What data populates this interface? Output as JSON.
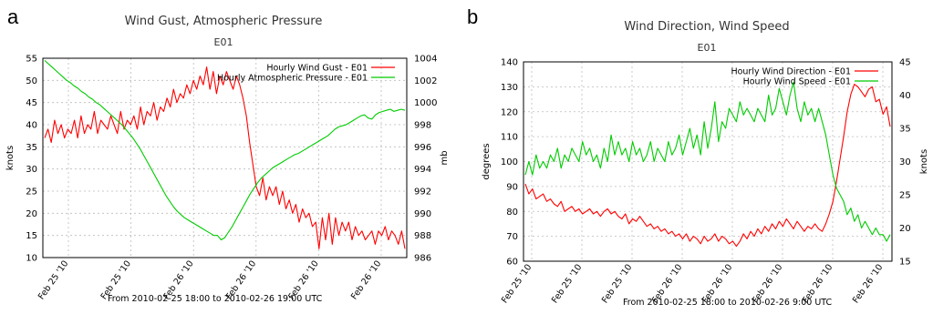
{
  "panels": {
    "left_letter": "a",
    "right_letter": "b"
  },
  "chart_data": [
    {
      "type": "line",
      "title": "Wind Gust, Atmospheric Pressure",
      "subtitle": "E01",
      "ylabel": "knots",
      "y2label": "mb",
      "ylim": [
        10,
        55
      ],
      "y2lim": [
        986,
        1004
      ],
      "yticks": [
        "10",
        "15",
        "20",
        "25",
        "30",
        "35",
        "40",
        "45",
        "50",
        "55"
      ],
      "y2ticks": [
        "986",
        "988",
        "990",
        "992",
        "994",
        "996",
        "998",
        "1000",
        "1002",
        "1004"
      ],
      "xticks": [
        "Feb 25 '10",
        "Feb 25 '10",
        "Feb 26 '10",
        "Feb 26 '10",
        "Feb 26 '10",
        "Feb 26 '10"
      ],
      "xrange_label": "From 2010-02-25 18:00 to 2010-02-26 19:00 UTC",
      "grid": true,
      "legend_position": "top-right",
      "series": [
        {
          "name": "Hourly Wind Gust  - E01",
          "color": "#ff0000",
          "axis": "left",
          "values": [
            37,
            39,
            36,
            41,
            38,
            40,
            37,
            39,
            38,
            41,
            37,
            42,
            38,
            40,
            39,
            43,
            38,
            41,
            40,
            39,
            42,
            40,
            38,
            43,
            39,
            41,
            40,
            42,
            39,
            44,
            40,
            43,
            42,
            45,
            41,
            44,
            43,
            46,
            44,
            48,
            45,
            47,
            46,
            49,
            47,
            50,
            48,
            51,
            49,
            53,
            48,
            52,
            47,
            51,
            49,
            52,
            50,
            48,
            51,
            49,
            46,
            42,
            36,
            31,
            26,
            24,
            28,
            23,
            26,
            24,
            26,
            22,
            25,
            21,
            23,
            20,
            22,
            18,
            21,
            19,
            20,
            17,
            18,
            12,
            19,
            14,
            20,
            13,
            19,
            15,
            18,
            16,
            18,
            14,
            17,
            15,
            16,
            14,
            15,
            16,
            13,
            16,
            15,
            17,
            14,
            16,
            15,
            13,
            16,
            12
          ]
        },
        {
          "name": "Hourly Atmospheric Pressure  - E01",
          "color": "#00cc00",
          "axis": "right",
          "values": [
            1003.8,
            1003.5,
            1003.2,
            1002.9,
            1002.6,
            1002.3,
            1002.0,
            1001.8,
            1001.5,
            1001.3,
            1001.0,
            1000.8,
            1000.5,
            1000.3,
            1000.0,
            999.8,
            999.5,
            999.2,
            998.9,
            998.6,
            998.3,
            998.0,
            997.6,
            997.2,
            996.8,
            996.3,
            995.8,
            995.2,
            994.6,
            994.0,
            993.4,
            992.8,
            992.2,
            991.6,
            991.1,
            990.6,
            990.2,
            989.9,
            989.6,
            989.4,
            989.2,
            989.0,
            988.8,
            988.6,
            988.4,
            988.2,
            988.0,
            988.0,
            987.6,
            987.8,
            988.3,
            988.8,
            989.4,
            990.0,
            990.6,
            991.2,
            991.8,
            992.3,
            992.8,
            993.2,
            993.5,
            993.8,
            994.1,
            994.3,
            994.5,
            994.7,
            994.9,
            995.1,
            995.3,
            995.4,
            995.6,
            995.8,
            996.0,
            996.2,
            996.4,
            996.6,
            996.8,
            997.0,
            997.3,
            997.6,
            997.8,
            997.9,
            998.0,
            998.2,
            998.4,
            998.6,
            998.8,
            998.9,
            998.6,
            998.5,
            998.9,
            999.1,
            999.2,
            999.3,
            999.4,
            999.2,
            999.3,
            999.4,
            999.3
          ]
        }
      ]
    },
    {
      "type": "line",
      "title": "Wind Direction, Wind Speed",
      "subtitle": "E01",
      "ylabel": "degrees",
      "y2label": "knots",
      "ylim": [
        60,
        140
      ],
      "y2lim": [
        15,
        45
      ],
      "yticks": [
        "60",
        "70",
        "80",
        "90",
        "100",
        "110",
        "120",
        "130",
        "140"
      ],
      "y2ticks": [
        "15",
        "20",
        "25",
        "30",
        "35",
        "40",
        "45"
      ],
      "xticks": [
        "Feb 25 '10",
        "Feb 25 '10",
        "Feb 25 '10",
        "Feb 26 '10",
        "Feb 26 '10",
        "Feb 26 '10",
        "Feb 26 '10",
        "Feb 26 '10"
      ],
      "xrange_label": "From 2010-02-25 18:00 to 2010-02-26 9:00 UTC",
      "grid": true,
      "legend_position": "top-right",
      "series": [
        {
          "name": "Hourly Wind Direction  - E01",
          "color": "#ff0000",
          "axis": "left",
          "values": [
            91,
            87,
            89,
            85,
            86,
            87,
            84,
            85,
            83,
            82,
            84,
            80,
            81,
            82,
            80,
            81,
            79,
            80,
            81,
            79,
            80,
            78,
            80,
            81,
            79,
            80,
            78,
            77,
            79,
            75,
            77,
            76,
            78,
            76,
            74,
            75,
            73,
            74,
            72,
            73,
            71,
            72,
            70,
            71,
            69,
            71,
            68,
            70,
            69,
            67,
            70,
            68,
            69,
            71,
            68,
            70,
            69,
            67,
            68,
            66,
            68,
            71,
            69,
            72,
            70,
            73,
            71,
            74,
            72,
            75,
            73,
            76,
            74,
            77,
            75,
            73,
            76,
            74,
            72,
            74,
            73,
            75,
            73,
            72,
            75,
            79,
            84,
            92,
            101,
            110,
            120,
            127,
            131,
            130,
            128,
            126,
            129,
            130,
            124,
            125,
            119,
            122,
            114
          ]
        },
        {
          "name": "Hourly Wind Speed  - E01",
          "color": "#00cc00",
          "axis": "right",
          "values": [
            28,
            30,
            28,
            31,
            29,
            30,
            29,
            31,
            30,
            32,
            29,
            31,
            30,
            32,
            31,
            30,
            33,
            31,
            32,
            30,
            31,
            29,
            32,
            30,
            34,
            31,
            33,
            31,
            32,
            30,
            33,
            31,
            32,
            30,
            31,
            33,
            30,
            32,
            31,
            30,
            33,
            31,
            32,
            34,
            31,
            33,
            35,
            32,
            34,
            31,
            36,
            32,
            35,
            39,
            33,
            36,
            35,
            38,
            37,
            36,
            39,
            37,
            38,
            37,
            36,
            38,
            37,
            36,
            40,
            37,
            38,
            41,
            39,
            37,
            40,
            42,
            38,
            36,
            39,
            37,
            38,
            36,
            38,
            36,
            34,
            31,
            28,
            26,
            25,
            24,
            22,
            23,
            21,
            22,
            20,
            21,
            20,
            19,
            20,
            19,
            19,
            18,
            19
          ]
        }
      ]
    }
  ]
}
